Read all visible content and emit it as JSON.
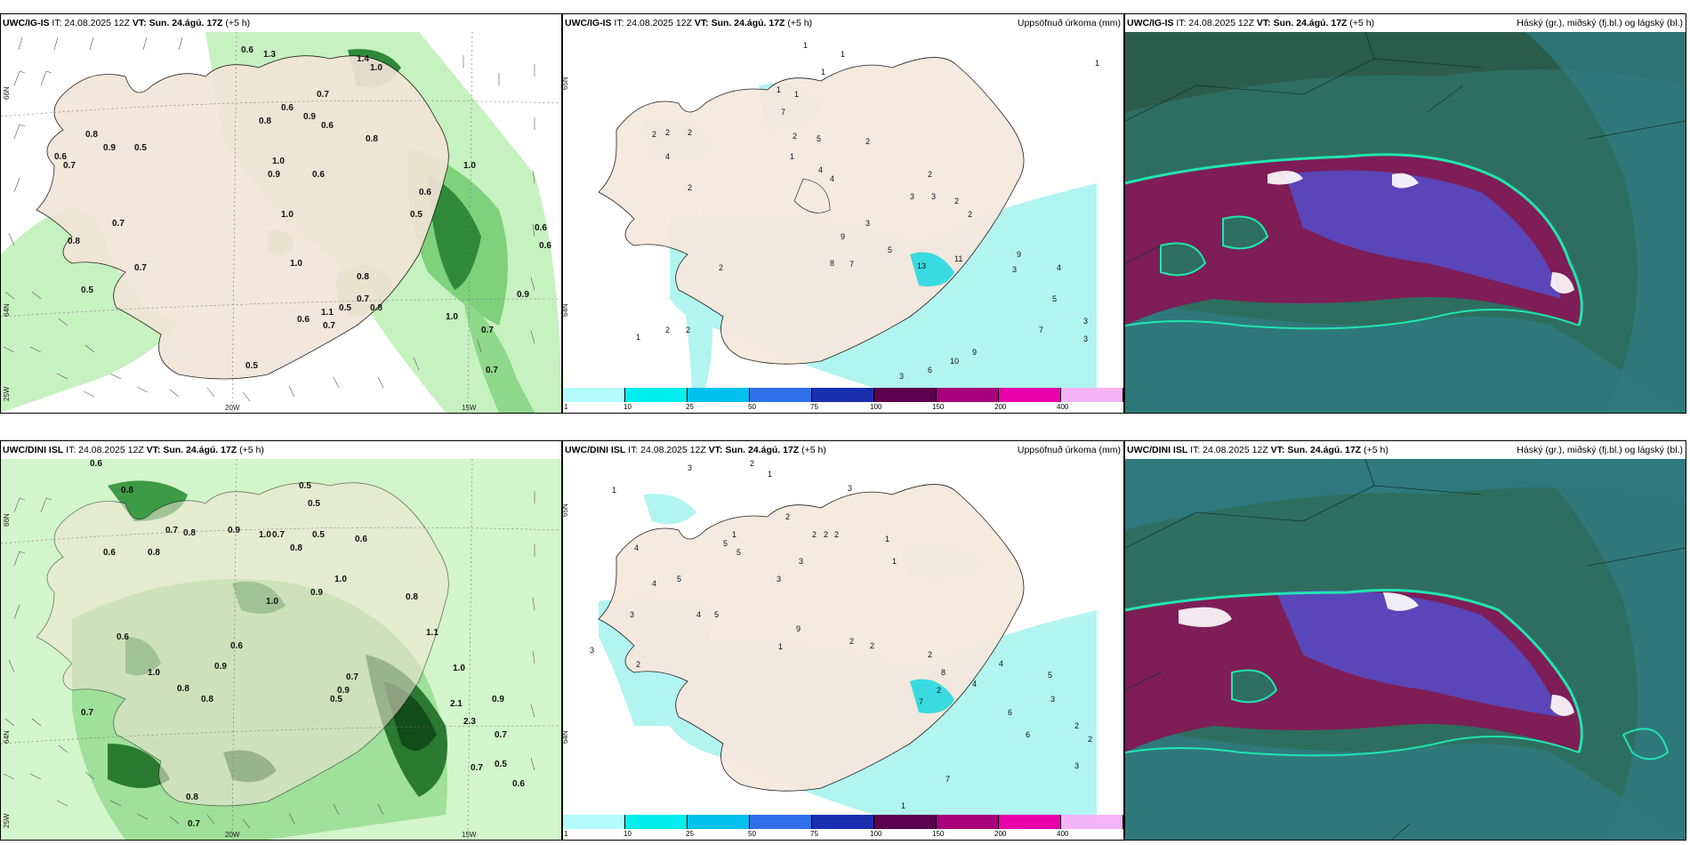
{
  "panels": [
    {
      "model": "UWC/IG-IS",
      "it": "IT: 24.08.2025 12Z",
      "vt_label": "VT:",
      "vt": "Sun. 24.ágú. 17Z",
      "lead": "(+5 h)",
      "title": ""
    },
    {
      "model": "UWC/IG-IS",
      "it": "IT: 24.08.2025 12Z",
      "vt_label": "VT:",
      "vt": "Sun. 24.ágú. 17Z",
      "lead": "(+5 h)",
      "title": "Uppsöfnuð úrkoma (mm)"
    },
    {
      "model": "UWC/IG-IS",
      "it": "IT: 24.08.2025 12Z",
      "vt_label": "VT:",
      "vt": "Sun. 24.ágú. 17Z",
      "lead": "(+5 h)",
      "title": "Háský (gr.), miðský (fj.bl.) og lágský (bl.)"
    },
    {
      "model": "UWC/DINI ISL",
      "it": "IT: 24.08.2025 12Z",
      "vt_label": "VT:",
      "vt": "Sun. 24.ágú. 17Z",
      "lead": "(+5 h)",
      "title": ""
    },
    {
      "model": "UWC/DINI ISL",
      "it": "IT: 24.08.2025 12Z",
      "vt_label": "VT:",
      "vt": "Sun. 24.ágú. 17Z",
      "lead": "(+5 h)",
      "title": "Uppsöfnuð úrkoma (mm)"
    },
    {
      "model": "UWC/DINI ISL",
      "it": "IT: 24.08.2025 12Z",
      "vt_label": "VT:",
      "vt": "Sun. 24.ágú. 17Z",
      "lead": "(+5 h)",
      "title": "Háský (gr.), miðský (fj.bl.) og lágský (bl.)"
    }
  ],
  "axis_labels": {
    "lat66": "66N",
    "lat64": "64N",
    "lon25": "25W",
    "lon20": "20W",
    "lon15": "15W"
  },
  "colorbar": {
    "ticks": [
      "1",
      "10",
      "25",
      "50",
      "75",
      "100",
      "150",
      "200",
      "400"
    ],
    "colors": [
      "#b3fbfb",
      "#00eeee",
      "#00c0ee",
      "#2f6fe8",
      "#1a2fb0",
      "#5b004c",
      "#a8007a",
      "#e800aa",
      "#f5b4f5"
    ]
  },
  "colors": {
    "land": "#f6e8dd",
    "rain_light": "#b2f4f0",
    "rain_mid": "#26d9e0",
    "green_light": "#bff0b8",
    "green_mid": "#5cb860",
    "green_dark": "#165a20",
    "cloud_bg": "#2f6f5f",
    "cloud_dark": "#2a5a4a",
    "cloud_high": "#3a8a9a",
    "cloud_mid": "#5a3fb0",
    "cloud_low": "#8a1550",
    "cloud_edge": "#19e0a8"
  },
  "precip_labels_top": [
    "0.6",
    "1.3",
    "1.4",
    "1.0",
    "0.7",
    "0.6",
    "0.9",
    "0.6",
    "0.8",
    "0.8",
    "1.0",
    "0.9",
    "0.6",
    "1.0",
    "0.8",
    "0.5",
    "0.9",
    "0.6",
    "0.7",
    "0.6",
    "1.0",
    "0.5",
    "0.7",
    "0.6",
    "0.8",
    "1.0",
    "0.8",
    "0.6",
    "0.7",
    "0.5",
    "0.7",
    "0.5",
    "0.8",
    "0.9",
    "1.1",
    "0.6",
    "0.7",
    "1.0",
    "0.7",
    "0.5",
    "0.7"
  ],
  "precip_labels_bottom": [
    "0.6",
    "0.8",
    "0.5",
    "0.5",
    "0.7",
    "0.8",
    "0.9",
    "1.0",
    "0.7",
    "0.6",
    "0.8",
    "0.5",
    "0.6",
    "0.8",
    "1.0",
    "0.9",
    "1.0",
    "0.8",
    "0.6",
    "0.6",
    "1.1",
    "1.0",
    "0.7",
    "0.9",
    "2.1",
    "2.3",
    "0.9",
    "0.7",
    "0.5",
    "0.8",
    "0.7",
    "0.5",
    "0.7",
    "0.8",
    "0.6",
    "1.0",
    "0.8",
    "0.9",
    "0.7"
  ],
  "accum_labels_top": [
    "1",
    "1",
    "1",
    "1",
    "1",
    "2",
    "2",
    "2",
    "7",
    "4",
    "2",
    "5",
    "2",
    "2",
    "1",
    "4",
    "4",
    "2",
    "3",
    "3",
    "2",
    "2",
    "3",
    "9",
    "8",
    "7",
    "13",
    "11",
    "2",
    "5",
    "9",
    "4",
    "5",
    "3",
    "3",
    "7",
    "6",
    "10",
    "9",
    "1",
    "3",
    "2",
    "2",
    "1",
    "3"
  ],
  "accum_labels_bottom": [
    "3",
    "2",
    "1",
    "1",
    "3",
    "2",
    "5",
    "2",
    "2",
    "2",
    "4",
    "5",
    "3",
    "3",
    "1",
    "1",
    "1",
    "4",
    "5",
    "3",
    "2",
    "2",
    "4",
    "4",
    "5",
    "1",
    "2",
    "3",
    "2",
    "9",
    "2",
    "8",
    "7",
    "4",
    "6",
    "5",
    "3",
    "6",
    "2",
    "2",
    "7",
    "1",
    "3"
  ]
}
